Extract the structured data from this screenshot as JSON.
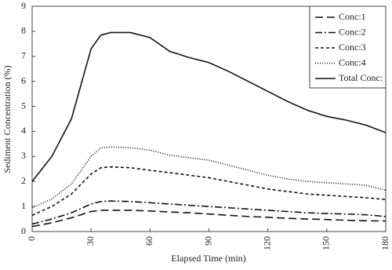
{
  "chart_data": {
    "type": "line",
    "xlabel": "Elapsed Time (min)",
    "ylabel": "Sediment Concentration (%)",
    "x": [
      0,
      10,
      20,
      30,
      35,
      40,
      50,
      60,
      70,
      80,
      90,
      100,
      110,
      120,
      130,
      140,
      150,
      160,
      170,
      180
    ],
    "series": [
      {
        "name": "Conc:1",
        "color": "#111111",
        "dash": "10,5",
        "values": [
          0.2,
          0.35,
          0.55,
          0.8,
          0.85,
          0.85,
          0.85,
          0.82,
          0.78,
          0.75,
          0.7,
          0.65,
          0.6,
          0.57,
          0.53,
          0.5,
          0.48,
          0.45,
          0.43,
          0.42
        ]
      },
      {
        "name": "Conc:2",
        "color": "#111111",
        "dash": "9,3,2,3",
        "values": [
          0.3,
          0.5,
          0.75,
          1.1,
          1.2,
          1.22,
          1.2,
          1.15,
          1.1,
          1.05,
          1.0,
          0.95,
          0.9,
          0.85,
          0.8,
          0.75,
          0.72,
          0.7,
          0.67,
          0.6
        ]
      },
      {
        "name": "Conc:3",
        "color": "#111111",
        "dash": "4,3",
        "values": [
          0.65,
          1.0,
          1.5,
          2.3,
          2.55,
          2.58,
          2.55,
          2.45,
          2.35,
          2.25,
          2.15,
          2.0,
          1.85,
          1.7,
          1.6,
          1.5,
          1.45,
          1.4,
          1.35,
          1.28
        ]
      },
      {
        "name": "Conc:4",
        "color": "#111111",
        "dash": "1,2",
        "values": [
          0.95,
          1.3,
          1.9,
          3.0,
          3.35,
          3.38,
          3.35,
          3.25,
          3.05,
          2.95,
          2.85,
          2.65,
          2.45,
          2.25,
          2.1,
          2.0,
          1.95,
          1.9,
          1.85,
          1.65
        ]
      },
      {
        "name": "Total Conc:",
        "color": "#111111",
        "dash": "none",
        "values": [
          2.0,
          3.0,
          4.5,
          7.3,
          7.85,
          7.95,
          7.95,
          7.75,
          7.2,
          6.95,
          6.75,
          6.4,
          6.0,
          5.6,
          5.2,
          4.85,
          4.6,
          4.45,
          4.25,
          3.95
        ]
      }
    ],
    "xlim": [
      0,
      180
    ],
    "xticks": [
      0,
      30,
      60,
      90,
      120,
      150,
      180
    ],
    "ylim": [
      0,
      9
    ],
    "yticks": [
      0,
      1,
      2,
      3,
      4,
      5,
      6,
      7,
      8,
      9
    ],
    "grid": false,
    "legend": "upper-right"
  }
}
